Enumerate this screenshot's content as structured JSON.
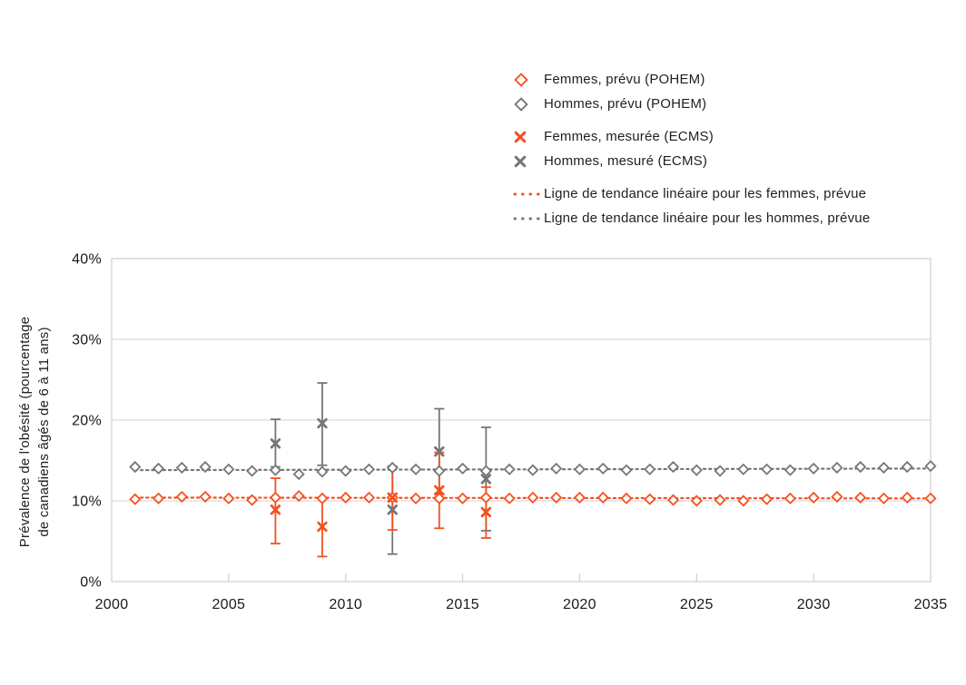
{
  "colors": {
    "femmes": "#F4511E",
    "hommes": "#767676",
    "grid": "#DADADA",
    "plot_border": "#CFCFCF",
    "axis_line": "#C2C2C2",
    "text": "#1F1F1F"
  },
  "legend": {
    "items": [
      {
        "id": "femmes-prevu",
        "marker": "diamond",
        "color_key": "femmes",
        "label": "Femmes, prévu (POHEM)",
        "group_gap": false
      },
      {
        "id": "hommes-prevu",
        "marker": "diamond",
        "color_key": "hommes",
        "label": "Hommes, prévu (POHEM)",
        "group_gap": false
      },
      {
        "id": "femmes-mesuree",
        "marker": "x",
        "color_key": "femmes",
        "label": "Femmes, mesurée (ECMS)",
        "group_gap": true
      },
      {
        "id": "hommes-mesure",
        "marker": "x",
        "color_key": "hommes",
        "label": "Hommes, mesuré (ECMS)",
        "group_gap": false
      },
      {
        "id": "tendance-femmes",
        "marker": "dotted-line",
        "color_key": "femmes",
        "label": "Ligne de tendance linéaire pour les femmes, prévue",
        "group_gap": true
      },
      {
        "id": "tendance-hommes",
        "marker": "dotted-line",
        "color_key": "hommes",
        "label": "Ligne de tendance linéaire pour les hommes, prévue",
        "group_gap": false
      }
    ]
  },
  "chart_data": {
    "type": "scatter",
    "title": "",
    "ylabel_line1": "Prévalence de l'obésité (pourcentage",
    "ylabel_line2": "de canadiens âgés de 6 à 11 ans)",
    "xlabel": "",
    "xlim": [
      2000,
      2035
    ],
    "ylim": [
      0,
      40
    ],
    "x_ticks": [
      2000,
      2005,
      2010,
      2015,
      2020,
      2025,
      2030,
      2035
    ],
    "y_ticks": [
      {
        "value": 0,
        "label": "0%"
      },
      {
        "value": 10,
        "label": "10%"
      },
      {
        "value": 20,
        "label": "20%"
      },
      {
        "value": 30,
        "label": "30%"
      },
      {
        "value": 40,
        "label": "40%"
      }
    ],
    "grid_values": [
      10,
      20,
      30
    ],
    "legend_position": "top-right",
    "series": [
      {
        "name": "Femmes, prévu (POHEM)",
        "role": "predicted",
        "marker": "diamond",
        "color_key": "femmes",
        "x": [
          2001,
          2002,
          2003,
          2004,
          2005,
          2006,
          2007,
          2008,
          2009,
          2010,
          2011,
          2012,
          2013,
          2014,
          2015,
          2016,
          2017,
          2018,
          2019,
          2020,
          2021,
          2022,
          2023,
          2024,
          2025,
          2026,
          2027,
          2028,
          2029,
          2030,
          2031,
          2032,
          2033,
          2034,
          2035
        ],
        "values": [
          10.2,
          10.3,
          10.5,
          10.5,
          10.3,
          10.1,
          10.4,
          10.6,
          10.3,
          10.4,
          10.4,
          10.4,
          10.3,
          10.3,
          10.3,
          10.4,
          10.3,
          10.4,
          10.4,
          10.4,
          10.4,
          10.3,
          10.2,
          10.1,
          10.0,
          10.1,
          10.0,
          10.2,
          10.3,
          10.4,
          10.5,
          10.4,
          10.3,
          10.4,
          10.3
        ]
      },
      {
        "name": "Hommes, prévu (POHEM)",
        "role": "predicted",
        "marker": "diamond",
        "color_key": "hommes",
        "x": [
          2001,
          2002,
          2003,
          2004,
          2005,
          2006,
          2007,
          2008,
          2009,
          2010,
          2011,
          2012,
          2013,
          2014,
          2015,
          2016,
          2017,
          2018,
          2019,
          2020,
          2021,
          2022,
          2023,
          2024,
          2025,
          2026,
          2027,
          2028,
          2029,
          2030,
          2031,
          2032,
          2033,
          2034,
          2035
        ],
        "values": [
          14.2,
          14.0,
          14.1,
          14.2,
          13.9,
          13.7,
          13.8,
          13.3,
          13.6,
          13.7,
          13.9,
          14.1,
          13.9,
          13.7,
          14.0,
          13.7,
          13.9,
          13.8,
          14.0,
          13.9,
          14.0,
          13.8,
          13.9,
          14.2,
          13.8,
          13.7,
          13.9,
          13.9,
          13.8,
          14.0,
          14.1,
          14.2,
          14.1,
          14.2,
          14.3
        ]
      },
      {
        "name": "Femmes, mesurée (ECMS)",
        "role": "measured",
        "marker": "x",
        "color_key": "femmes",
        "x": [
          2007,
          2009,
          2012,
          2014,
          2016
        ],
        "values": [
          8.9,
          6.8,
          10.4,
          11.3,
          8.6
        ],
        "ci_low": [
          4.7,
          3.1,
          6.4,
          6.6,
          5.4
        ],
        "ci_high": [
          12.8,
          10.4,
          14.1,
          16.0,
          11.7
        ]
      },
      {
        "name": "Hommes, mesuré (ECMS)",
        "role": "measured",
        "marker": "x",
        "color_key": "hommes",
        "x": [
          2007,
          2009,
          2012,
          2014,
          2016
        ],
        "values": [
          17.1,
          19.6,
          8.9,
          16.1,
          12.7
        ],
        "ci_low": [
          14.2,
          14.4,
          3.4,
          10.9,
          6.3
        ],
        "ci_high": [
          20.1,
          24.6,
          14.3,
          21.4,
          19.1
        ]
      },
      {
        "name": "Ligne de tendance linéaire pour les femmes, prévue",
        "role": "trend",
        "marker": "dotted-line",
        "color_key": "femmes",
        "x": [
          2001,
          2035
        ],
        "values": [
          10.4,
          10.3
        ]
      },
      {
        "name": "Ligne de tendance linéaire pour les hommes, prévue",
        "role": "trend",
        "marker": "dotted-line",
        "color_key": "hommes",
        "x": [
          2001,
          2035
        ],
        "values": [
          13.8,
          14.0
        ]
      }
    ]
  }
}
